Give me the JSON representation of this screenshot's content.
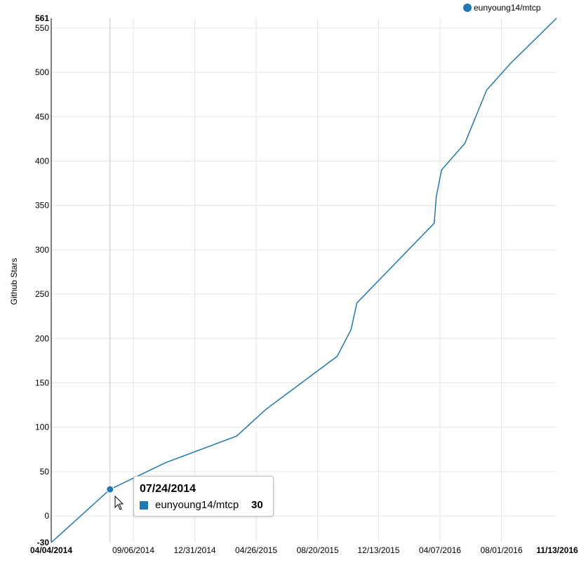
{
  "chart_data": {
    "type": "line",
    "title": "",
    "xlabel": "",
    "ylabel": "Github Stars",
    "ylim": [
      -30,
      561
    ],
    "xlim": [
      "04/04/2014",
      "11/13/2016"
    ],
    "y_ticks": [
      0,
      50,
      100,
      150,
      200,
      250,
      300,
      350,
      400,
      450,
      500,
      550
    ],
    "y_min_label": "-30",
    "y_max_label": "561",
    "x_ticks": [
      "09/06/2014",
      "12/31/2014",
      "04/26/2015",
      "08/20/2015",
      "12/13/2015",
      "04/07/2016",
      "08/01/2016"
    ],
    "x_min_label": "04/04/2014",
    "x_max_label": "11/13/2016",
    "grid": true,
    "legend_position": "top-right",
    "series": [
      {
        "name": "eunyoung14/mtcp",
        "color": "#1f77b4",
        "points": [
          {
            "x": "04/04/2014",
            "y": -30
          },
          {
            "x": "07/24/2014",
            "y": 30
          },
          {
            "x": "11/06/2014",
            "y": 60
          },
          {
            "x": "03/20/2015",
            "y": 90
          },
          {
            "x": "05/14/2015",
            "y": 120
          },
          {
            "x": "09/26/2015",
            "y": 180
          },
          {
            "x": "10/22/2015",
            "y": 210
          },
          {
            "x": "11/02/2015",
            "y": 240
          },
          {
            "x": "03/27/2016",
            "y": 330
          },
          {
            "x": "03/31/2016",
            "y": 360
          },
          {
            "x": "04/10/2016",
            "y": 390
          },
          {
            "x": "05/24/2016",
            "y": 420
          },
          {
            "x": "07/04/2016",
            "y": 480
          },
          {
            "x": "08/18/2016",
            "y": 510
          },
          {
            "x": "11/13/2016",
            "y": 561
          }
        ]
      }
    ]
  },
  "tooltip": {
    "date": "07/24/2014",
    "series": "eunyoung14/mtcp",
    "value": "30"
  }
}
